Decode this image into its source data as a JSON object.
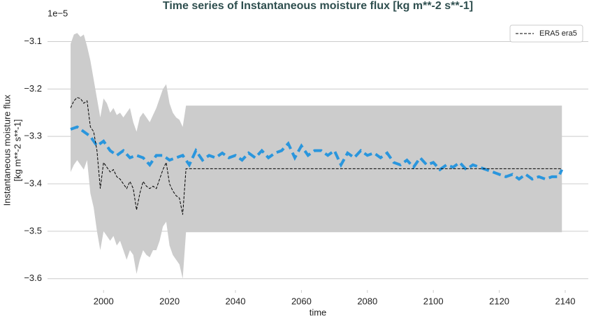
{
  "chart_data": {
    "type": "line",
    "title": "Time series of Instantaneous moisture flux [kg m**-2 s**-1]",
    "ylabel": [
      "Instantaneous moisture flux",
      "[kg m**-2 s**-1]"
    ],
    "xlabel": "time",
    "offset_label": "1e−5",
    "xlim": [
      1983,
      2147
    ],
    "ylim": [
      -3.624,
      -3.03
    ],
    "xticks": [
      2000,
      2020,
      2040,
      2060,
      2080,
      2100,
      2120,
      2140
    ],
    "yticks": [
      {
        "value": -3.6,
        "label": "−3.6"
      },
      {
        "value": -3.5,
        "label": "−3.5"
      },
      {
        "value": -3.4,
        "label": "−3.4"
      },
      {
        "value": -3.3,
        "label": "−3.3"
      },
      {
        "value": -3.2,
        "label": "−3.2"
      },
      {
        "value": -3.1,
        "label": "−3.1"
      }
    ],
    "grid": "y",
    "legend": "upper right",
    "band": {
      "color": "#cccccc",
      "x": [
        1990,
        1991,
        1992,
        1993,
        1994,
        1995,
        1996,
        1997,
        1998,
        1999,
        2000,
        2001,
        2002,
        2003,
        2004,
        2005,
        2006,
        2007,
        2008,
        2009,
        2010,
        2011,
        2012,
        2013,
        2014,
        2015,
        2016,
        2017,
        2018,
        2019,
        2020,
        2021,
        2022,
        2023,
        2024,
        2025,
        2139
      ],
      "upper": [
        -3.105,
        -3.085,
        -3.082,
        -3.09,
        -3.085,
        -3.11,
        -3.14,
        -3.18,
        -3.22,
        -3.26,
        -3.22,
        -3.23,
        -3.25,
        -3.24,
        -3.255,
        -3.25,
        -3.26,
        -3.25,
        -3.24,
        -3.27,
        -3.29,
        -3.26,
        -3.25,
        -3.26,
        -3.27,
        -3.255,
        -3.24,
        -3.22,
        -3.2,
        -3.19,
        -3.23,
        -3.25,
        -3.26,
        -3.265,
        -3.28,
        -3.235,
        -3.235
      ],
      "lower": [
        -3.375,
        -3.36,
        -3.35,
        -3.36,
        -3.37,
        -3.35,
        -3.42,
        -3.45,
        -3.5,
        -3.54,
        -3.5,
        -3.51,
        -3.52,
        -3.51,
        -3.53,
        -3.52,
        -3.54,
        -3.56,
        -3.54,
        -3.55,
        -3.59,
        -3.56,
        -3.54,
        -3.55,
        -3.555,
        -3.54,
        -3.54,
        -3.52,
        -3.49,
        -3.48,
        -3.53,
        -3.55,
        -3.56,
        -3.57,
        -3.6,
        -3.502,
        -3.502
      ]
    },
    "series": [
      {
        "color": "#2a96dd",
        "style": "dashed",
        "width": 4,
        "x": [
          1990,
          1992,
          1994,
          1996,
          1998,
          2000,
          2002,
          2004,
          2006,
          2008,
          2010,
          2012,
          2014,
          2016,
          2018,
          2020,
          2022,
          2024,
          2026,
          2028,
          2030,
          2032,
          2034,
          2036,
          2038,
          2040,
          2042,
          2044,
          2046,
          2048,
          2050,
          2052,
          2054,
          2056,
          2058,
          2060,
          2062,
          2064,
          2066,
          2068,
          2070,
          2072,
          2074,
          2076,
          2078,
          2080,
          2082,
          2084,
          2086,
          2088,
          2090,
          2092,
          2094,
          2096,
          2098,
          2100,
          2102,
          2104,
          2106,
          2108,
          2110,
          2112,
          2114,
          2116,
          2118,
          2120,
          2122,
          2124,
          2126,
          2128,
          2130,
          2132,
          2134,
          2136,
          2138,
          2139
        ],
        "values": [
          -3.285,
          -3.28,
          -3.29,
          -3.3,
          -3.32,
          -3.31,
          -3.33,
          -3.34,
          -3.33,
          -3.345,
          -3.34,
          -3.345,
          -3.36,
          -3.34,
          -3.34,
          -3.35,
          -3.345,
          -3.34,
          -3.36,
          -3.33,
          -3.35,
          -3.34,
          -3.345,
          -3.335,
          -3.345,
          -3.34,
          -3.35,
          -3.335,
          -3.345,
          -3.33,
          -3.345,
          -3.335,
          -3.33,
          -3.315,
          -3.345,
          -3.32,
          -3.34,
          -3.33,
          -3.33,
          -3.34,
          -3.33,
          -3.36,
          -3.335,
          -3.345,
          -3.33,
          -3.34,
          -3.335,
          -3.345,
          -3.335,
          -3.355,
          -3.36,
          -3.35,
          -3.365,
          -3.345,
          -3.36,
          -3.355,
          -3.37,
          -3.36,
          -3.365,
          -3.355,
          -3.37,
          -3.36,
          -3.365,
          -3.37,
          -3.375,
          -3.38,
          -3.385,
          -3.38,
          -3.39,
          -3.38,
          -3.39,
          -3.385,
          -3.39,
          -3.385,
          -3.385,
          -3.37
        ]
      },
      {
        "name": "ERA5 era5",
        "color": "#000000",
        "style": "dashed",
        "width": 1,
        "x": [
          1990,
          1991,
          1992,
          1993,
          1994,
          1995,
          1996,
          1997,
          1998,
          1999,
          2000,
          2001,
          2002,
          2003,
          2004,
          2005,
          2006,
          2007,
          2008,
          2009,
          2010,
          2011,
          2012,
          2013,
          2014,
          2015,
          2016,
          2017,
          2018,
          2019,
          2020,
          2021,
          2022,
          2023,
          2024,
          2025,
          2139
        ],
        "values": [
          -3.24,
          -3.225,
          -3.218,
          -3.22,
          -3.23,
          -3.225,
          -3.28,
          -3.29,
          -3.33,
          -3.41,
          -3.355,
          -3.365,
          -3.375,
          -3.37,
          -3.385,
          -3.39,
          -3.4,
          -3.41,
          -3.395,
          -3.41,
          -3.455,
          -3.42,
          -3.395,
          -3.405,
          -3.41,
          -3.405,
          -3.41,
          -3.39,
          -3.37,
          -3.355,
          -3.4,
          -3.415,
          -3.425,
          -3.43,
          -3.465,
          -3.368,
          -3.368
        ]
      }
    ]
  }
}
